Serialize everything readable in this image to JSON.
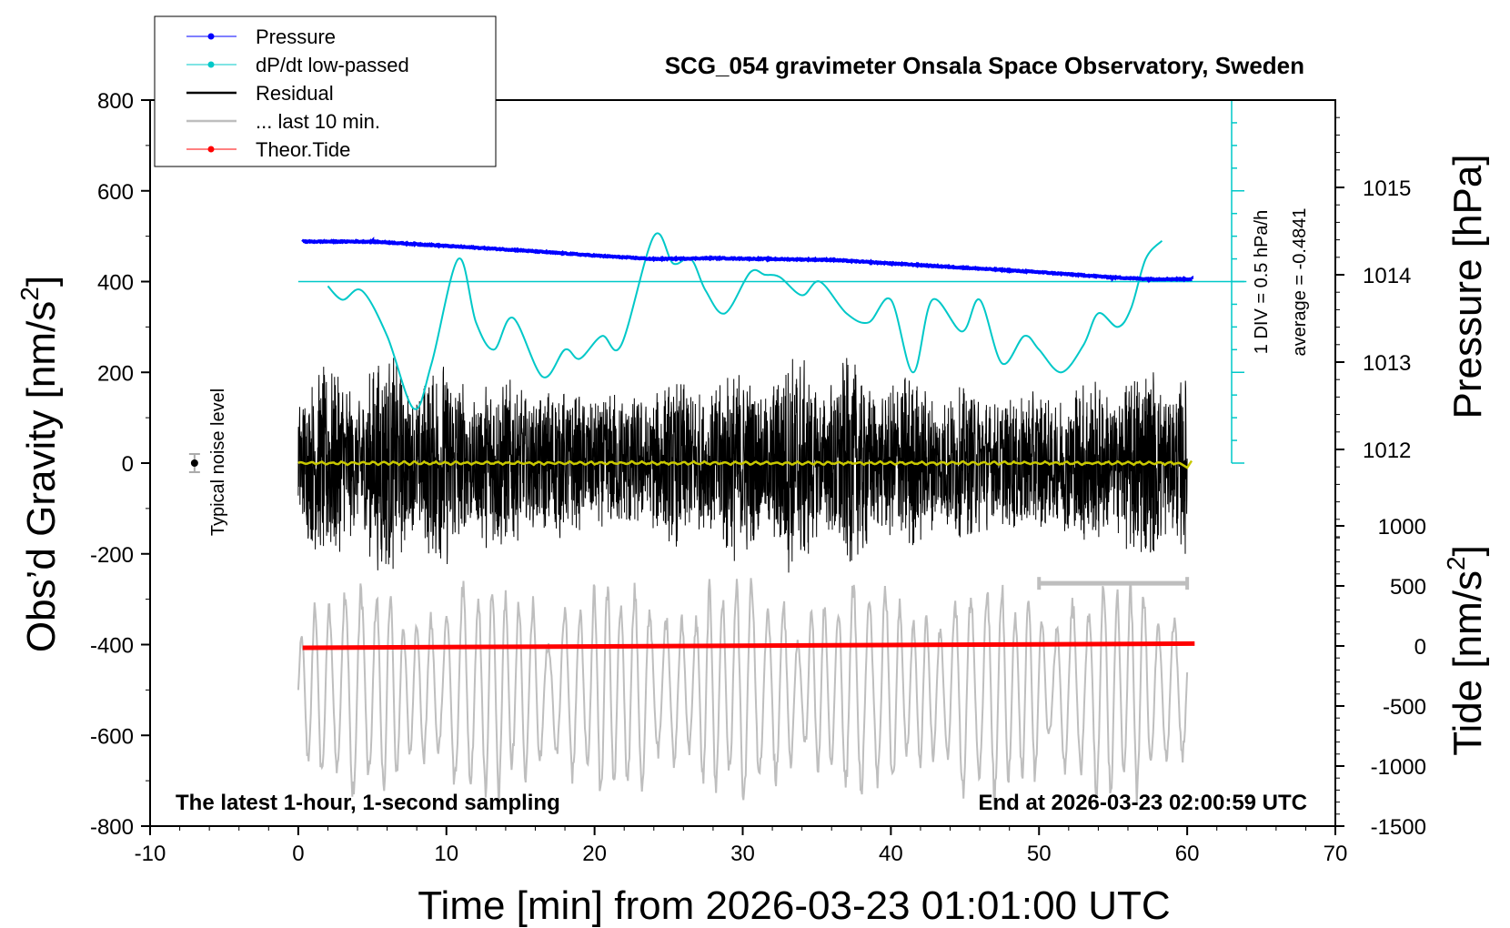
{
  "chart_data": {
    "type": "line",
    "title": "SCG_054 gravimeter Onsala Space Observatory, Sweden",
    "xlabel": "Time [min] from 2026-03-23 01:01:00 UTC",
    "xlim": [
      -10,
      70
    ],
    "x_ticks": [
      "-10",
      "0",
      "10",
      "20",
      "30",
      "40",
      "50",
      "60",
      "70"
    ],
    "axes": {
      "left": {
        "label_main": "Obs’d Gravity [nm/s",
        "label_sup": "2",
        "label_end": "]",
        "ylim": [
          -800,
          800
        ],
        "ticks": [
          "800",
          "600",
          "400",
          "200",
          "0",
          "-200",
          "-400",
          "-600",
          "-800"
        ]
      },
      "right_pressure": {
        "label": "Pressure [hPa]",
        "ylim": [
          1011,
          1016
        ],
        "ticks": [
          "1015",
          "1014",
          "1013",
          "1012"
        ]
      },
      "right_tide": {
        "label_main": "Tide [nm/s",
        "label_sup": "2",
        "label_end": "]",
        "ylim": [
          -1500,
          1000
        ],
        "ticks": [
          "1000",
          "500",
          "0",
          "-500",
          "-1000",
          "-1500"
        ]
      }
    },
    "legend": {
      "placement": "top-left",
      "entries": [
        {
          "label": "Pressure",
          "color": "#0000ff",
          "marker": true
        },
        {
          "label": "dP/dt low-passed",
          "color": "#00c8c8",
          "marker": true
        },
        {
          "label": "Residual",
          "color": "#000000",
          "marker": false
        },
        {
          "label": "... last 10 min.",
          "color": "#bebebe",
          "marker": false
        },
        {
          "label": "Theor.Tide",
          "color": "#ff0000",
          "marker": true
        }
      ]
    },
    "annotations": {
      "noise_label": "Typical noise level",
      "dpdt_scale": "1 DIV = 0.5 hPa/h",
      "dpdt_average": "average = -0.4841",
      "bottom_left": "The latest 1-hour, 1-second sampling",
      "bottom_right": "End at 2026-03-23 02:00:59 UTC"
    },
    "series": [
      {
        "name": "Pressure",
        "axis": "right_pressure",
        "color": "#0000ff",
        "x": [
          0.3,
          5,
          10,
          15,
          20,
          24,
          28,
          32,
          36,
          40,
          45,
          50,
          55,
          57.5,
          60.3
        ],
        "values": [
          1014.38,
          1014.38,
          1014.33,
          1014.28,
          1014.22,
          1014.18,
          1014.19,
          1014.18,
          1014.17,
          1014.13,
          1014.08,
          1014.03,
          1013.97,
          1013.95,
          1013.95
        ]
      },
      {
        "name": "dP/dt low-passed",
        "axis": "left",
        "color": "#00c8c8",
        "x": [
          2,
          3,
          4.3,
          6,
          7.8,
          9,
          10.8,
          12,
          13.2,
          14.5,
          16.5,
          18,
          19,
          20.5,
          21.8,
          24,
          25.3,
          26.5,
          27.5,
          28.8,
          30.5,
          31.5,
          32.5,
          34,
          35.2,
          37,
          38.5,
          40,
          41.5,
          42.8,
          44.8,
          46,
          47.5,
          49,
          50,
          51.5,
          53,
          54,
          55.3,
          56.2,
          57.2,
          58.3
        ],
        "values": [
          390,
          360,
          380,
          280,
          120,
          220,
          450,
          310,
          250,
          320,
          190,
          250,
          230,
          280,
          260,
          500,
          440,
          450,
          380,
          330,
          420,
          415,
          410,
          370,
          400,
          330,
          310,
          360,
          200,
          360,
          290,
          360,
          220,
          280,
          250,
          200,
          260,
          330,
          300,
          340,
          450,
          490
        ]
      },
      {
        "name": "Residual",
        "axis": "left",
        "color": "#000000",
        "note": "1-second sampling, amplitude about ±250 nm/s² around 0",
        "x": [
          0,
          60
        ],
        "values": [
          0,
          0
        ],
        "amplitude": 250
      },
      {
        "name": "... last 10 min.",
        "axis": "left",
        "color": "#bebebe",
        "note": "oscillation around -500 nm/s², amplitude about ±200 nm/s²",
        "x": [
          0,
          60
        ],
        "values": [
          -500,
          -500
        ],
        "amplitude": 200
      },
      {
        "name": "Theor.Tide",
        "axis": "right_tide",
        "color": "#ff0000",
        "x": [
          0.3,
          60.5
        ],
        "values": [
          -15,
          20
        ]
      },
      {
        "name": "",
        "axis": "left",
        "color": "#c8c800",
        "x": [
          0,
          59.5,
          60,
          60.3
        ],
        "values": [
          0,
          0,
          -10,
          5
        ]
      }
    ],
    "noise_level": {
      "x": -7,
      "value": 0,
      "error": 20
    },
    "last10_interval": {
      "x": [
        50,
        60
      ],
      "value": -265
    },
    "dpdt_reference": {
      "value": 400,
      "scale_x": 63,
      "scale_top": 800,
      "scale_bottom": 0
    }
  }
}
